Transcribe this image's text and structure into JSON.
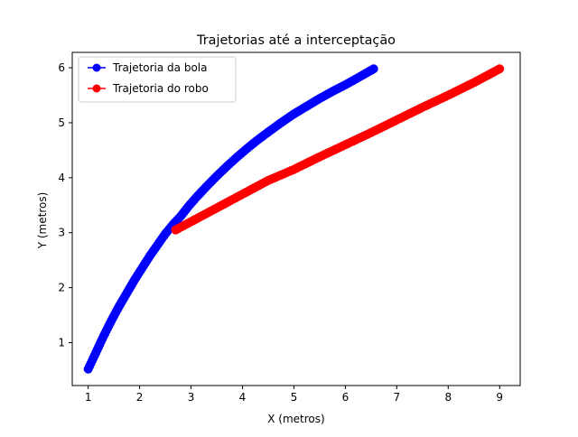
{
  "chart_data": {
    "type": "line",
    "title": "Trajetorias até a interceptação",
    "xlabel": "X (metros)",
    "ylabel": "Y (metros)",
    "xlim": [
      0.69,
      9.4
    ],
    "ylim": [
      0.22,
      6.28
    ],
    "xticks": [
      1,
      2,
      3,
      4,
      5,
      6,
      7,
      8,
      9
    ],
    "yticks": [
      1,
      2,
      3,
      4,
      5,
      6
    ],
    "grid": false,
    "legend": {
      "placement": "top-left"
    },
    "series": [
      {
        "name": "Trajetoria da bola",
        "color": "#0000ff",
        "marker": "circle",
        "points": [
          [
            1.0,
            0.52
          ],
          [
            1.1,
            0.72
          ],
          [
            1.2,
            0.92
          ],
          [
            1.3,
            1.12
          ],
          [
            1.45,
            1.4
          ],
          [
            1.6,
            1.66
          ],
          [
            1.75,
            1.9
          ],
          [
            1.9,
            2.14
          ],
          [
            2.05,
            2.36
          ],
          [
            2.2,
            2.58
          ],
          [
            2.35,
            2.78
          ],
          [
            2.5,
            2.98
          ],
          [
            2.65,
            3.15
          ],
          [
            2.8,
            3.3
          ],
          [
            2.95,
            3.48
          ],
          [
            3.1,
            3.64
          ],
          [
            3.3,
            3.84
          ],
          [
            3.5,
            4.03
          ],
          [
            3.7,
            4.21
          ],
          [
            3.9,
            4.38
          ],
          [
            4.1,
            4.54
          ],
          [
            4.3,
            4.69
          ],
          [
            4.5,
            4.83
          ],
          [
            4.75,
            5.0
          ],
          [
            5.0,
            5.16
          ],
          [
            5.25,
            5.3
          ],
          [
            5.5,
            5.44
          ],
          [
            5.75,
            5.57
          ],
          [
            6.0,
            5.69
          ],
          [
            6.25,
            5.82
          ],
          [
            6.55,
            5.98
          ]
        ]
      },
      {
        "name": "Trajetoria do robo",
        "color": "#ff0000",
        "marker": "circle",
        "points": [
          [
            2.7,
            3.05
          ],
          [
            3.0,
            3.2
          ],
          [
            3.5,
            3.45
          ],
          [
            4.0,
            3.7
          ],
          [
            4.5,
            3.95
          ],
          [
            5.0,
            4.15
          ],
          [
            5.5,
            4.38
          ],
          [
            6.0,
            4.6
          ],
          [
            6.5,
            4.82
          ],
          [
            7.0,
            5.05
          ],
          [
            7.5,
            5.28
          ],
          [
            8.0,
            5.5
          ],
          [
            8.5,
            5.73
          ],
          [
            9.0,
            5.98
          ]
        ]
      }
    ]
  }
}
